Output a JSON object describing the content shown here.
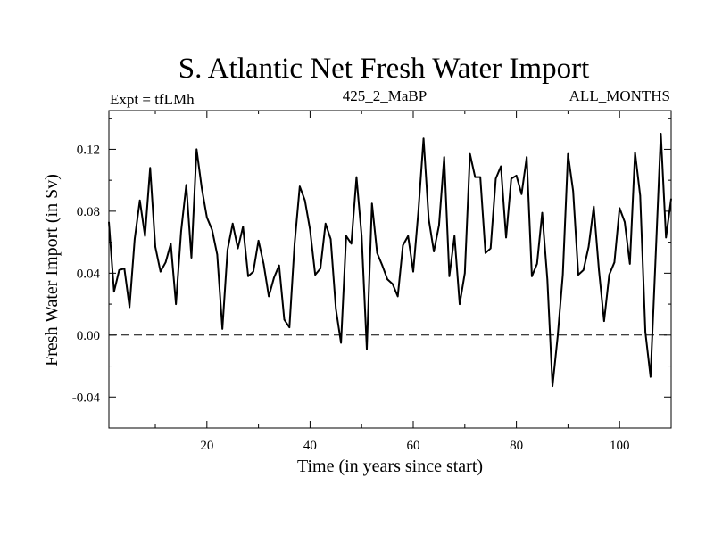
{
  "chart_data": {
    "type": "line",
    "title": "S. Atlantic Net Fresh Water Import",
    "subtitle_left": "Expt = tfLMh",
    "subtitle_center": "425_2_MaBP",
    "subtitle_right": "ALL_MONTHS",
    "xlabel": "Time (in years since start)",
    "ylabel": "Fresh Water Import (in Sv)",
    "xlim": [
      1,
      110
    ],
    "ylim": [
      -0.06,
      0.145
    ],
    "xticks": [
      20,
      40,
      60,
      80,
      100
    ],
    "xtick_labels": [
      "20",
      "40",
      "60",
      "80",
      "100"
    ],
    "yticks": [
      -0.04,
      0.0,
      0.04,
      0.08,
      0.12
    ],
    "ytick_labels": [
      "-0.04",
      "0.00",
      "0.04",
      "0.08",
      "0.12"
    ],
    "reference_line": {
      "y": 0.0,
      "style": "dashed"
    },
    "series": [
      {
        "name": "Net Fresh Water Import",
        "x": [
          1,
          2,
          3,
          4,
          5,
          6,
          7,
          8,
          9,
          10,
          11,
          12,
          13,
          14,
          15,
          16,
          17,
          18,
          19,
          20,
          21,
          22,
          23,
          24,
          25,
          26,
          27,
          28,
          29,
          30,
          31,
          32,
          33,
          34,
          35,
          36,
          37,
          38,
          39,
          40,
          41,
          42,
          43,
          44,
          45,
          46,
          47,
          48,
          49,
          50,
          51,
          52,
          53,
          54,
          55,
          56,
          57,
          58,
          59,
          60,
          61,
          62,
          63,
          64,
          65,
          66,
          67,
          68,
          69,
          70,
          71,
          72,
          73,
          74,
          75,
          76,
          77,
          78,
          79,
          80,
          81,
          82,
          83,
          84,
          85,
          86,
          87,
          88,
          89,
          90,
          91,
          92,
          93,
          94,
          95,
          96,
          97,
          98,
          99,
          100,
          101,
          102,
          103,
          104,
          105,
          106,
          107,
          108,
          109,
          110
        ],
        "values": [
          0.073,
          0.028,
          0.042,
          0.043,
          0.018,
          0.062,
          0.087,
          0.064,
          0.108,
          0.057,
          0.041,
          0.047,
          0.059,
          0.02,
          0.067,
          0.097,
          0.05,
          0.12,
          0.095,
          0.076,
          0.068,
          0.052,
          0.004,
          0.055,
          0.072,
          0.056,
          0.07,
          0.038,
          0.041,
          0.061,
          0.046,
          0.025,
          0.037,
          0.045,
          0.01,
          0.005,
          0.059,
          0.096,
          0.087,
          0.068,
          0.039,
          0.043,
          0.072,
          0.062,
          0.017,
          -0.005,
          0.064,
          0.059,
          0.102,
          0.064,
          -0.009,
          0.085,
          0.053,
          0.045,
          0.036,
          0.033,
          0.025,
          0.058,
          0.064,
          0.041,
          0.08,
          0.127,
          0.075,
          0.054,
          0.071,
          0.115,
          0.038,
          0.064,
          0.02,
          0.04,
          0.117,
          0.102,
          0.102,
          0.053,
          0.056,
          0.101,
          0.109,
          0.063,
          0.101,
          0.103,
          0.091,
          0.115,
          0.038,
          0.046,
          0.079,
          0.036,
          -0.033,
          -0.001,
          0.039,
          0.117,
          0.093,
          0.039,
          0.042,
          0.057,
          0.083,
          0.042,
          0.009,
          0.039,
          0.047,
          0.082,
          0.073,
          0.046,
          0.118,
          0.09,
          0.002,
          -0.027,
          0.051,
          0.13,
          0.063,
          0.088
        ]
      }
    ]
  }
}
